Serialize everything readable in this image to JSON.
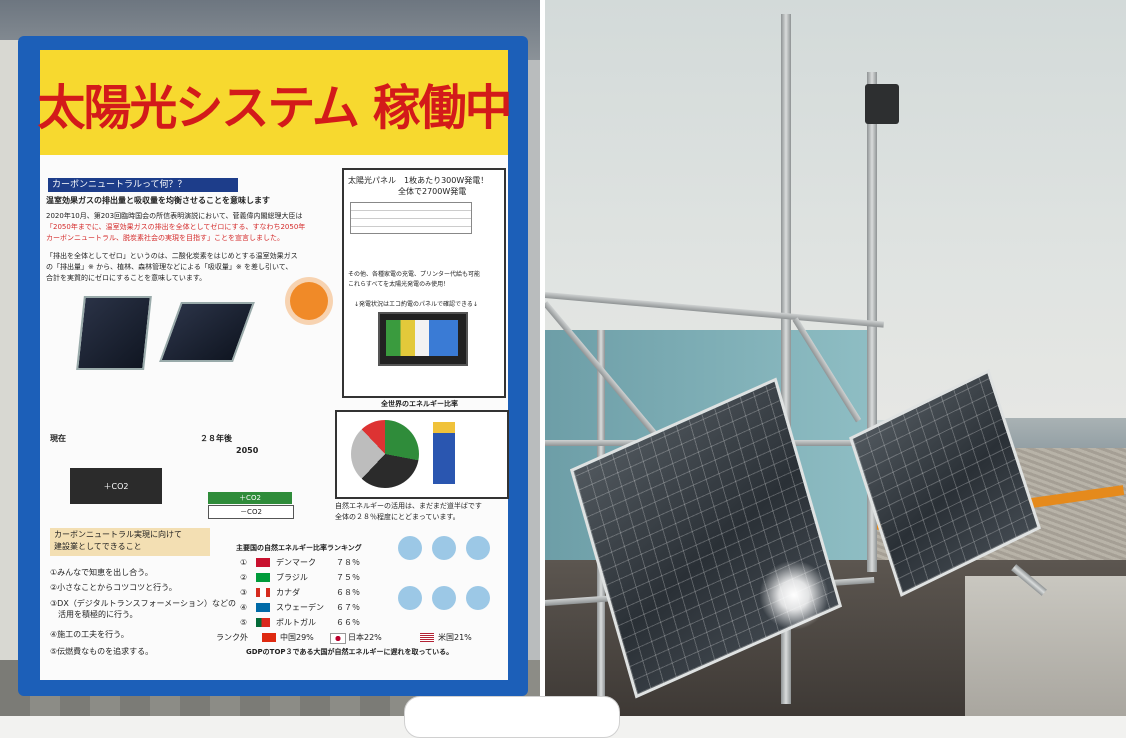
{
  "sign": {
    "banner": "太陽光システム 稼働中",
    "carbon_heading": "カーボンニュートラルって何？？",
    "carbon_lead": "温室効果ガスの排出量と吸収量を均衡させることを意味します",
    "carbon_p1": "2020年10月、第203回臨時国会の所信表明演説において、菅義偉内閣総理大臣は",
    "carbon_p2": "「2050年までに、温室効果ガスの排出を全体としてゼロにする、すなわち2050年",
    "carbon_p3": "カーボンニュートラル、脱炭素社会の実現を目指す」ことを宣言しました。",
    "carbon_p4": "「排出を全体としてゼロ」というのは、二酸化炭素をはじめとする温室効果ガス",
    "carbon_p5": "の「排出量」※ から、植林、森林管理などによる「吸収量」※ を差し引いて、",
    "carbon_p6": "合計を実質的にゼロにすることを意味しています。",
    "panel_box_title": "太陽光パネル　1枚あたり300W発電！",
    "panel_box_sub": "全体で2700W発電",
    "panel_box_note": "その他、各種家電の充電、プリンター代給も可能",
    "panel_box_note2": "これらすべてを太陽光発電のみ使用！",
    "panel_box_monitor": "↓発電状況はエコ約電のパネルで確認できる↓",
    "energy_title": "全世界のエネルギー比率",
    "energy_note1": "自然エネルギーの活用は、まだまだ道半ばです",
    "energy_note2": "全体の２８％程度にとどまっています。",
    "timeline_now": "現在",
    "timeline_future": "２８年後",
    "year_2050": "2050",
    "co2_plus_left": "＋CO2",
    "co2_plus_right": "＋CO2",
    "co2_minus": "－CO2",
    "action_title": "カーボンニュートラル実現に向けて",
    "action_sub": "建設業としてできること",
    "actions": [
      "①みんなで知恵を出し合う。",
      "②小さなことからコツコツと行う。",
      "③DX（デジタルトランスフォーメーション）などの",
      "　活用を積極的に行う。",
      "④施工の工夫を行う。",
      "⑤伝燃費なものを追求する。"
    ],
    "ranking_title": "主要国の自然エネルギー比率ランキング",
    "ranking": [
      {
        "no": "①",
        "country": "デンマーク",
        "pct": "７８％"
      },
      {
        "no": "②",
        "country": "ブラジル",
        "pct": "７５％"
      },
      {
        "no": "③",
        "country": "カナダ",
        "pct": "６８％"
      },
      {
        "no": "④",
        "country": "スウェーデン",
        "pct": "６７％"
      },
      {
        "no": "⑤",
        "country": "ポルトガル",
        "pct": "６６％"
      }
    ],
    "rank_others_label": "ランク外",
    "rank_china": "中国29%",
    "rank_japan": "日本22%",
    "rank_usa": "米国21%",
    "gdp_note": "GDPのTOP３である大国が自然エネルギーに遅れを取っている。",
    "colors": {
      "banner_bg": "#f7d92f",
      "banner_text": "#d31a1a",
      "frame": "#1c5fb8"
    }
  }
}
